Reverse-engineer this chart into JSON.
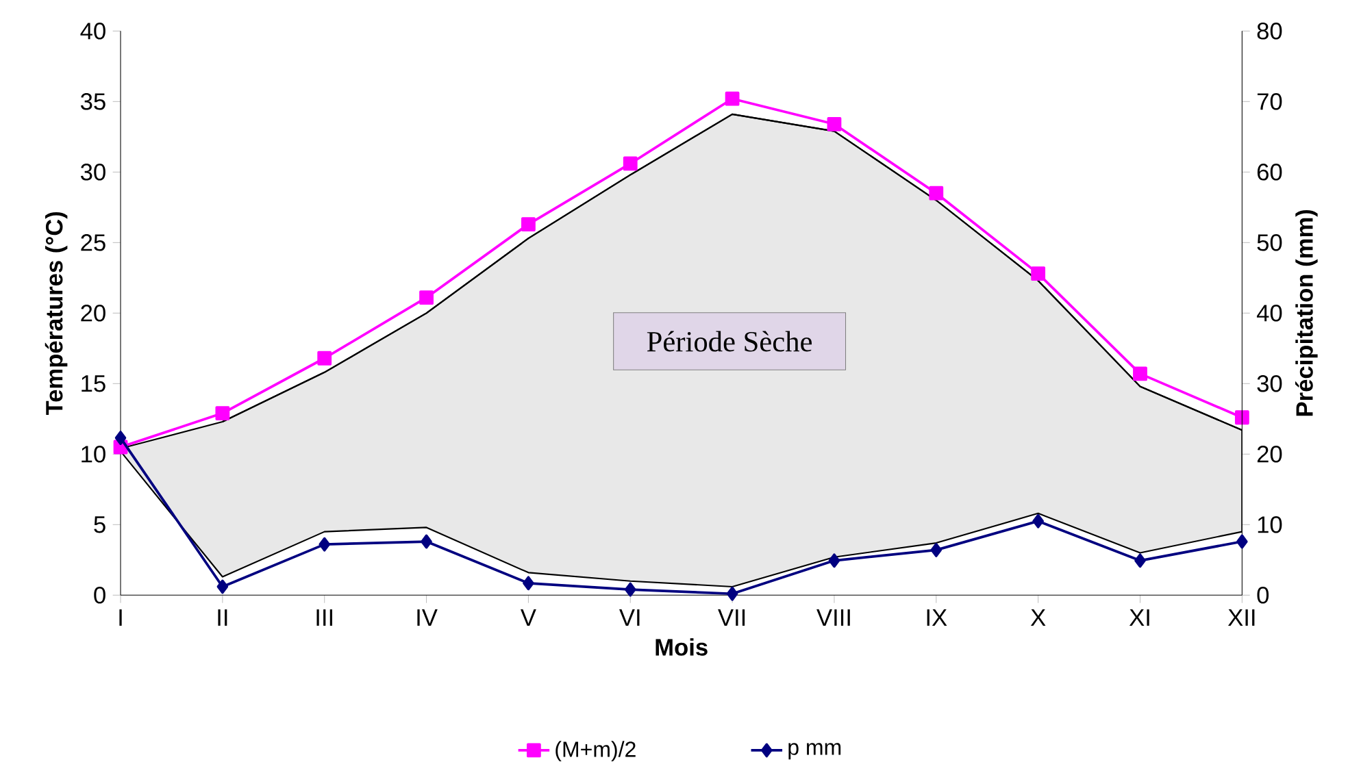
{
  "chart_data": {
    "type": "line",
    "xlabel": "Mois",
    "ylabel": "Températures (°C)",
    "y2label": "Précipitation (mm)",
    "categories": [
      "I",
      "II",
      "III",
      "IV",
      "V",
      "VI",
      "VII",
      "VIII",
      "IX",
      "X",
      "XI",
      "XII"
    ],
    "ylim": [
      0,
      40
    ],
    "yticks": [
      0,
      5,
      10,
      15,
      20,
      25,
      30,
      35,
      40
    ],
    "y2lim": [
      0,
      80
    ],
    "y2ticks": [
      0,
      10,
      20,
      30,
      40,
      50,
      60,
      70,
      80
    ],
    "series": [
      {
        "type": "line",
        "color": "#000000",
        "marker": "none",
        "values": [
          null,
          12.3,
          15.8,
          20.0,
          25.3,
          29.8,
          34.1,
          32.9,
          28.0,
          22.3,
          14.8,
          11.7
        ],
        "upper": [
          10.4,
          12.3,
          15.8,
          20.0,
          25.3,
          29.8,
          34.1,
          32.9,
          28.0,
          22.3,
          14.8,
          11.7
        ],
        "lower": [
          10.2,
          1.3,
          4.5,
          4.8,
          1.6,
          1.0,
          0.6,
          2.7,
          3.7,
          5.8,
          3.0,
          4.5
        ]
      },
      {
        "name": "(M+m)/2",
        "color": "#ff00ff",
        "marker": "square",
        "values": [
          10.5,
          12.9,
          16.8,
          21.1,
          26.3,
          30.6,
          35.2,
          33.4,
          28.5,
          22.8,
          15.7,
          12.6
        ]
      },
      {
        "name": "p mm",
        "color": "#000080",
        "marker": "diamond",
        "axis": "y2",
        "values": [
          22.3,
          1.2,
          7.2,
          7.6,
          1.7,
          0.8,
          0.2,
          4.9,
          6.4,
          10.5,
          4.9,
          7.6
        ]
      }
    ],
    "annotations": [
      "Période Sèche"
    ],
    "grid": false,
    "legend": "bottom"
  }
}
